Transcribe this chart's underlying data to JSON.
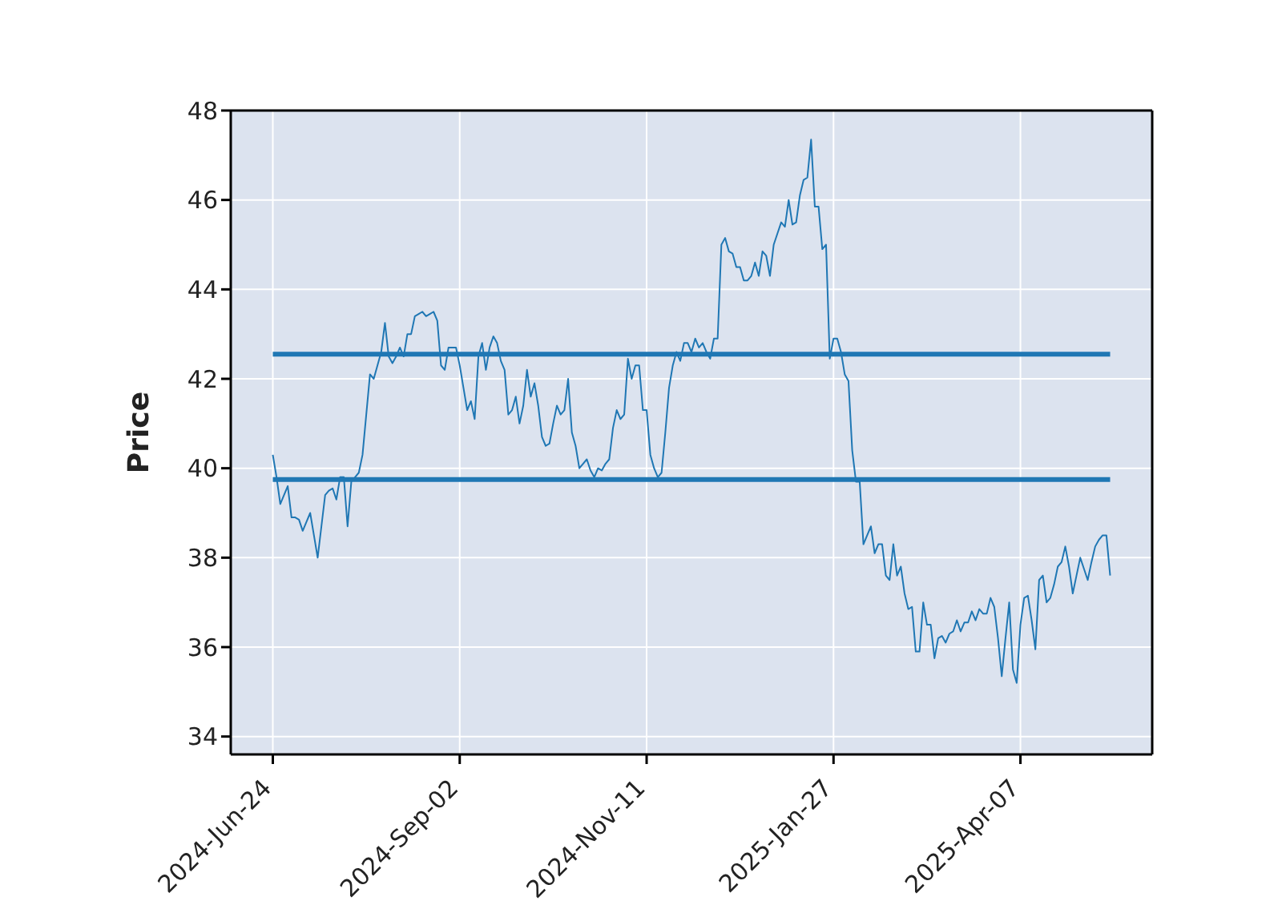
{
  "chart_data": {
    "type": "line",
    "ylabel": "Price",
    "grid": true,
    "ylim": [
      33.6,
      48
    ],
    "yticks": [
      34,
      36,
      38,
      40,
      42,
      44,
      46,
      48
    ],
    "categories": [
      "2024-Jun-24",
      null,
      null,
      null,
      null,
      null,
      null,
      null,
      null,
      null,
      null,
      null,
      null,
      null,
      null,
      null,
      null,
      null,
      null,
      null,
      null,
      null,
      null,
      null,
      null,
      null,
      null,
      null,
      null,
      null,
      null,
      null,
      null,
      null,
      null,
      null,
      null,
      null,
      null,
      null,
      null,
      null,
      null,
      null,
      null,
      null,
      null,
      null,
      null,
      null,
      "2024-Sep-02",
      null,
      null,
      null,
      null,
      null,
      null,
      null,
      null,
      null,
      null,
      null,
      null,
      null,
      null,
      null,
      null,
      null,
      null,
      null,
      null,
      null,
      null,
      null,
      null,
      null,
      null,
      null,
      null,
      null,
      null,
      null,
      null,
      null,
      null,
      null,
      null,
      null,
      null,
      null,
      null,
      null,
      null,
      null,
      null,
      null,
      null,
      null,
      null,
      null,
      "2024-Nov-11",
      null,
      null,
      null,
      null,
      null,
      null,
      null,
      null,
      null,
      null,
      null,
      null,
      null,
      null,
      null,
      null,
      null,
      null,
      null,
      null,
      null,
      null,
      null,
      null,
      null,
      null,
      null,
      null,
      null,
      null,
      null,
      null,
      null,
      null,
      null,
      null,
      null,
      null,
      null,
      null,
      null,
      null,
      null,
      null,
      null,
      null,
      null,
      null,
      null,
      "2025-Jan-27",
      null,
      null,
      null,
      null,
      null,
      null,
      null,
      null,
      null,
      null,
      null,
      null,
      null,
      null,
      null,
      null,
      null,
      null,
      null,
      null,
      null,
      null,
      null,
      null,
      null,
      null,
      null,
      null,
      null,
      null,
      null,
      null,
      null,
      null,
      null,
      null,
      null,
      null,
      null,
      null,
      null,
      null,
      null,
      null,
      null,
      null,
      null,
      null,
      null,
      "2025-Apr-07",
      null,
      null,
      null,
      null,
      null,
      null,
      null,
      null,
      null,
      null,
      null,
      null,
      null,
      null,
      null,
      null,
      null,
      null,
      null,
      null,
      null,
      null,
      null,
      null
    ],
    "series": [
      {
        "color": "#1f77b4",
        "values": [
          40.3,
          39.8,
          39.2,
          39.4,
          39.6,
          38.9,
          38.9,
          38.85,
          38.6,
          38.8,
          39.0,
          38.5,
          38.0,
          38.7,
          39.4,
          39.5,
          39.55,
          39.3,
          39.8,
          39.8,
          38.7,
          39.7,
          39.8,
          39.9,
          40.3,
          41.2,
          42.1,
          42.0,
          42.3,
          42.6,
          43.25,
          42.5,
          42.35,
          42.5,
          42.7,
          42.5,
          43.0,
          43.0,
          43.4,
          43.45,
          43.5,
          43.4,
          43.45,
          43.5,
          43.3,
          42.3,
          42.2,
          42.7,
          42.7,
          42.7,
          42.3,
          41.8,
          41.3,
          41.5,
          41.1,
          42.5,
          42.8,
          42.2,
          42.7,
          42.95,
          42.8,
          42.4,
          42.2,
          41.2,
          41.3,
          41.6,
          41.0,
          41.4,
          42.2,
          41.6,
          41.9,
          41.4,
          40.7,
          40.5,
          40.55,
          41.0,
          41.4,
          41.2,
          41.3,
          42.0,
          40.8,
          40.5,
          40.0,
          40.1,
          40.2,
          39.95,
          39.8,
          40.0,
          39.95,
          40.1,
          40.2,
          40.9,
          41.3,
          41.1,
          41.2,
          42.45,
          42.0,
          42.3,
          42.3,
          41.3,
          41.3,
          40.3,
          40.0,
          39.8,
          39.9,
          40.8,
          41.8,
          42.3,
          42.6,
          42.4,
          42.8,
          42.8,
          42.6,
          42.9,
          42.7,
          42.8,
          42.6,
          42.45,
          42.9,
          42.9,
          45.0,
          45.15,
          44.85,
          44.8,
          44.5,
          44.5,
          44.2,
          44.2,
          44.3,
          44.6,
          44.3,
          44.85,
          44.75,
          44.3,
          45.0,
          45.25,
          45.5,
          45.4,
          46.0,
          45.45,
          45.5,
          46.1,
          46.45,
          46.5,
          47.35,
          45.85,
          45.85,
          44.9,
          45.0,
          42.45,
          42.9,
          42.9,
          42.6,
          42.1,
          41.95,
          40.4,
          39.7,
          39.7,
          38.3,
          38.5,
          38.7,
          38.1,
          38.3,
          38.3,
          37.6,
          37.5,
          38.3,
          37.6,
          37.8,
          37.2,
          36.85,
          36.9,
          35.9,
          35.9,
          37.0,
          36.5,
          36.5,
          35.75,
          36.2,
          36.25,
          36.1,
          36.3,
          36.35,
          36.6,
          36.35,
          36.55,
          36.55,
          36.8,
          36.6,
          36.85,
          36.75,
          36.75,
          37.1,
          36.9,
          36.2,
          35.35,
          36.2,
          37.0,
          35.5,
          35.2,
          36.5,
          37.1,
          37.15,
          36.6,
          35.95,
          37.5,
          37.6,
          37.0,
          37.1,
          37.4,
          37.8,
          37.9,
          38.25,
          37.8,
          37.2,
          37.6,
          38.0,
          37.75,
          37.5,
          37.9,
          38.25,
          38.4,
          38.5,
          38.5,
          37.6
        ]
      }
    ],
    "ref_lines": [
      {
        "axis": "y",
        "value": 42.55,
        "color": "#1f77b4"
      },
      {
        "axis": "y",
        "value": 39.75,
        "color": "#1f77b4"
      }
    ]
  }
}
